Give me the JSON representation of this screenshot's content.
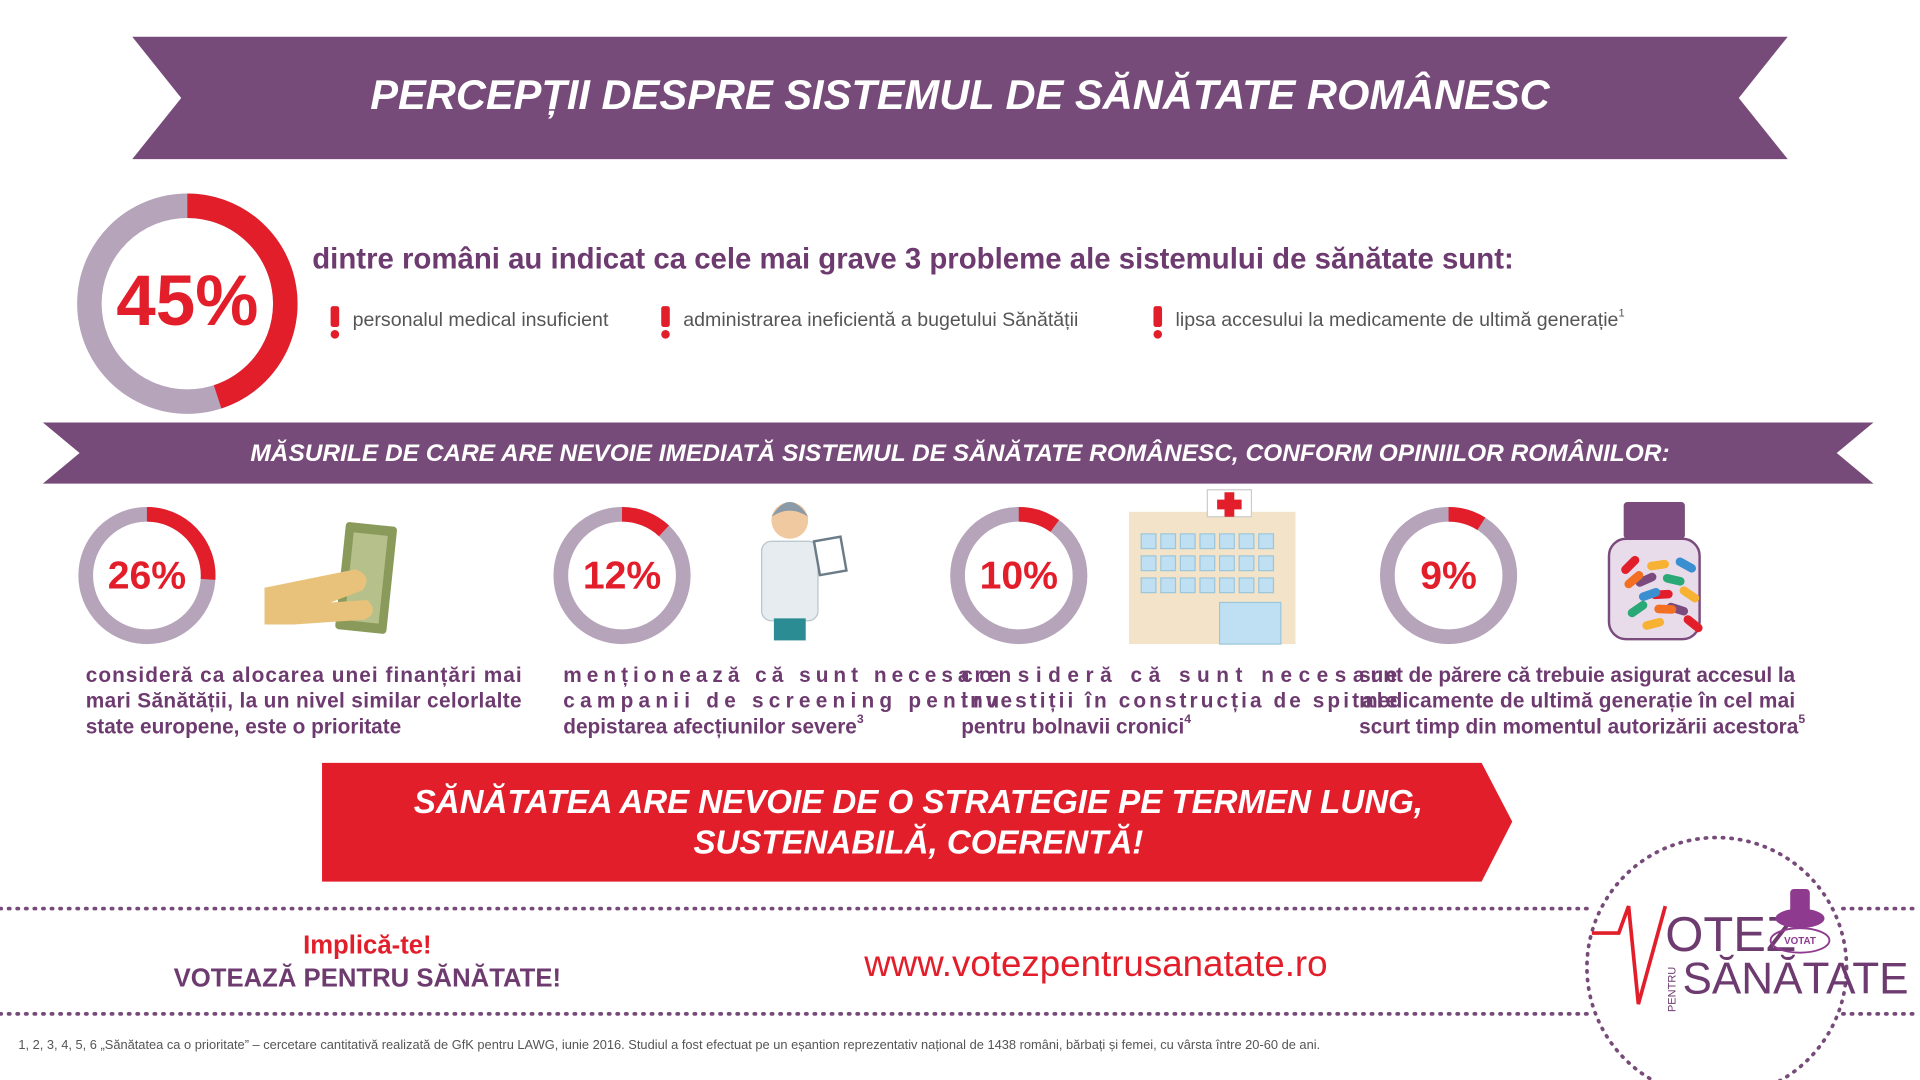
{
  "header": {
    "title": "PERCEPȚII DESPRE SISTEMUL DE SĂNĂTATE ROMÂNESC"
  },
  "highlight": {
    "value": 45,
    "label": "45%",
    "text": "dintre români au indicat ca cele mai grave 3 probleme ale sistemului de sănătate sunt:",
    "problems": [
      {
        "text": "personalul medical insuficient"
      },
      {
        "text": "administrarea ineficientă a bugetului Sănătății"
      },
      {
        "text": "lipsa accesului la medicamente de ultimă generație",
        "note": "1"
      }
    ]
  },
  "measures": {
    "title": "MĂSURILE DE CARE ARE NEVOIE IMEDIATĂ SISTEMUL DE SĂNĂTATE ROMÂNESC, CONFORM OPINIILOR ROMÂNILOR:",
    "items": [
      {
        "value": 26,
        "label": "26%",
        "lines": [
          "consideră ca alocarea unei finanțări mai",
          "mari Sănătății, la un nivel similar celorlalte",
          "state europene, este o prioritate"
        ]
      },
      {
        "value": 12,
        "label": "12%",
        "lines": [
          "menționează că sunt necesare",
          "campanii de screening pentru",
          "depistarea afecțiunilor severe"
        ],
        "note": "3"
      },
      {
        "value": 10,
        "label": "10%",
        "lines": [
          "consideră că sunt necesare",
          "investiții în construcția de spitale",
          "pentru bolnavii cronici"
        ],
        "note": "4"
      },
      {
        "value": 9,
        "label": "9%",
        "lines": [
          "sunt de părere că trebuie asigurat accesul la",
          "medicamente de ultimă generație în cel mai",
          "scurt timp din momentul autorizării acestora"
        ],
        "note": "5"
      }
    ]
  },
  "slogan": {
    "lines": [
      "SĂNĂTATEA ARE NEVOIE DE O STRATEGIE PE TERMEN LUNG,",
      "SUSTENABILĂ, COERENTĂ!"
    ]
  },
  "footer": {
    "call": "Implică-te!",
    "cta": "VOTEAZĂ PENTRU SĂNĂTATE!",
    "url": "www.votezpentrusanatate.ro",
    "logo": {
      "word": "OTEZ",
      "small": "PENTRU",
      "name": "SĂNĂTATE",
      "stamp": "VOTAT"
    },
    "source": "1, 2, 3, 4, 5, 6  „Sănătatea ca o prioritate” – cercetare cantitativă realizată de GfK pentru LAWG, iunie 2016. Studiul a fost efectuat pe un eșantion reprezentativ național de 1438 români, bărbați și femei, cu vârsta între 20-60 de ani."
  }
}
